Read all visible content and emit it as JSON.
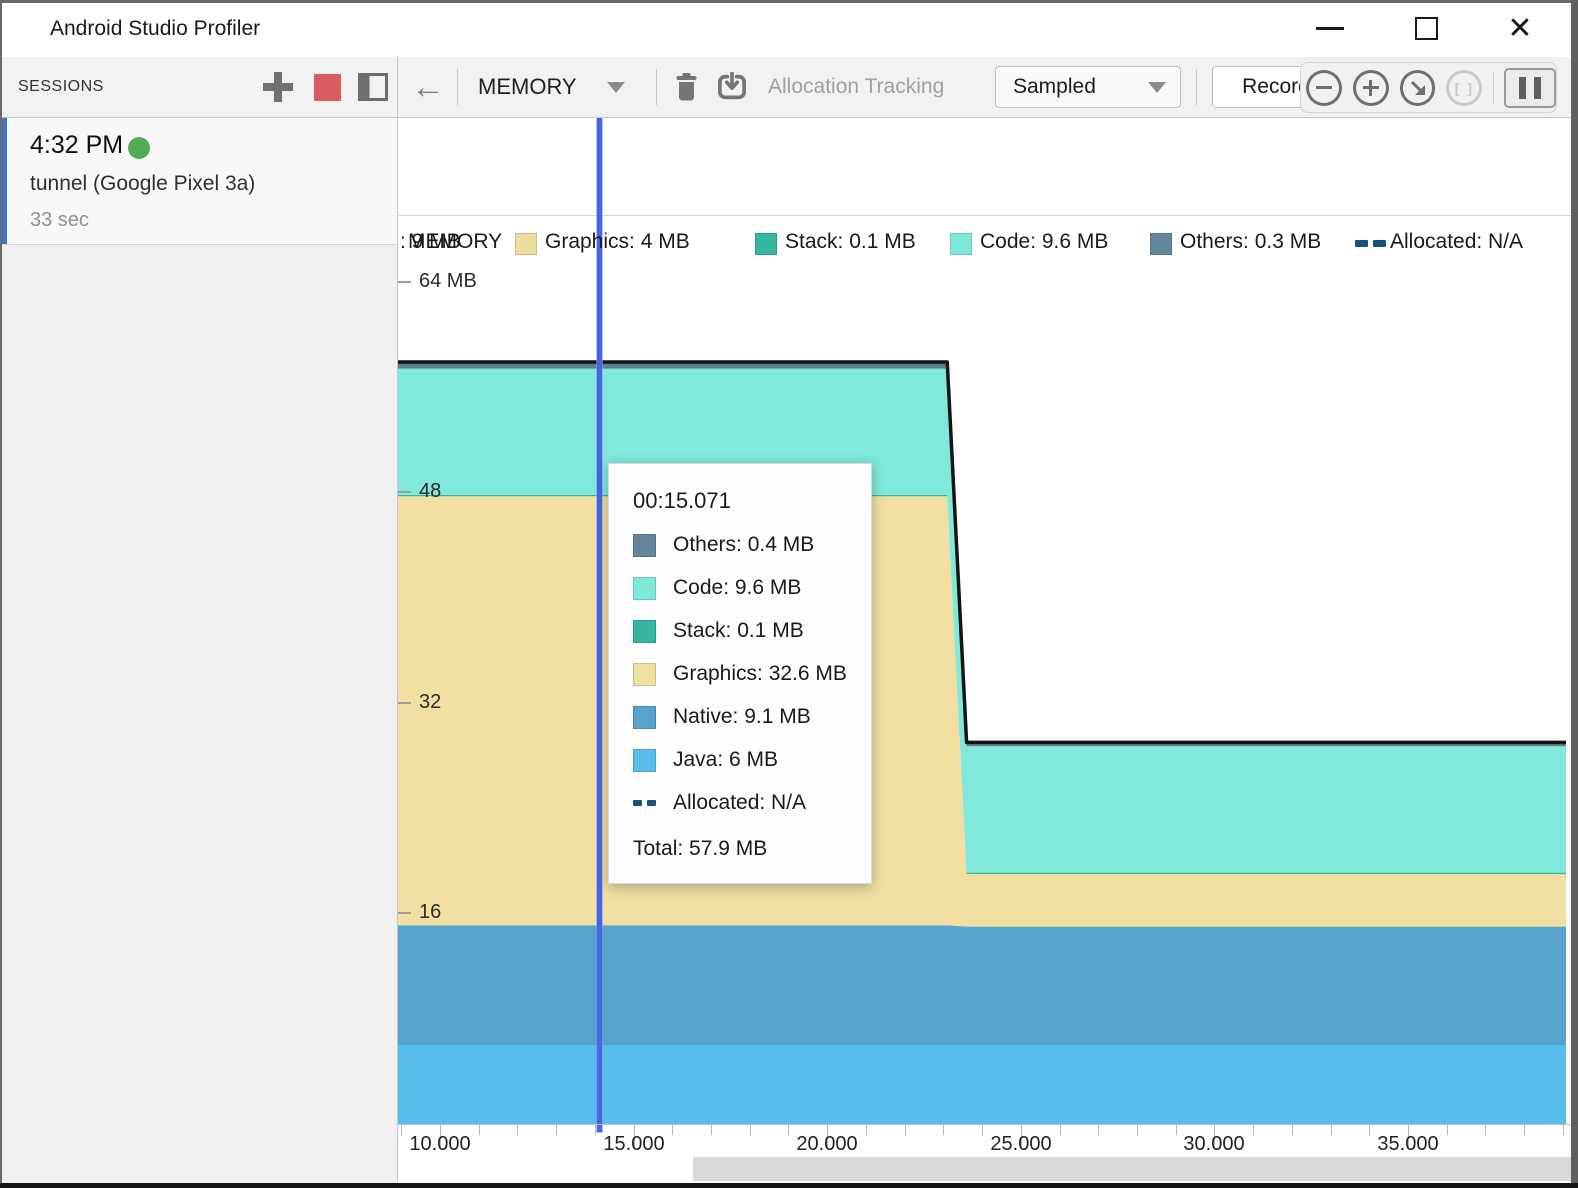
{
  "window": {
    "title": "Android Studio Profiler",
    "close_glyph": "✕"
  },
  "sessions": {
    "header": "SESSIONS",
    "item": {
      "time": "4:32 PM",
      "device": "tunnel (Google Pixel 3a)",
      "duration": "33 sec"
    }
  },
  "toolbar": {
    "back_glyph": "←",
    "stage_selector": "MEMORY",
    "allocation_tracking_label": "Allocation Tracking",
    "sampling_mode": "Sampled",
    "record_label": "Record",
    "bracket_glyph": "[ ]"
  },
  "legend": {
    "clipped_label_behind": ": 9 MB",
    "stage_label": "MEMORY",
    "items": [
      {
        "label": "Graphics: 4 MB",
        "color": "#eedd9f",
        "swatch": "square"
      },
      {
        "label": "Stack: 0.1 MB",
        "color": "#35b5a2",
        "swatch": "square"
      },
      {
        "label": "Code: 9.6 MB",
        "color": "#7fe9d9",
        "swatch": "square"
      },
      {
        "label": "Others: 0.3 MB",
        "color": "#64869c",
        "swatch": "square"
      },
      {
        "label": "Allocated: N/A",
        "color": "#16537a",
        "swatch": "dashes"
      }
    ]
  },
  "tooltip": {
    "time": "00:15.071",
    "rows": [
      {
        "label": "Others: 0.4 MB",
        "color": "#64869c",
        "swatch": "square"
      },
      {
        "label": "Code: 9.6 MB",
        "color": "#7fe9d9",
        "swatch": "square"
      },
      {
        "label": "Stack: 0.1 MB",
        "color": "#35b5a2",
        "swatch": "square"
      },
      {
        "label": "Graphics: 32.6 MB",
        "color": "#f2dfa2",
        "swatch": "square"
      },
      {
        "label": "Native: 9.1 MB",
        "color": "#55a3ca",
        "swatch": "square"
      },
      {
        "label": "Java: 6 MB",
        "color": "#57bdec",
        "swatch": "square"
      },
      {
        "label": "Allocated: N/A",
        "color": "#16537a",
        "swatch": "dashes"
      }
    ],
    "total": "Total: 57.9 MB"
  },
  "chart_data": {
    "type": "area",
    "stacked": true,
    "stage": "MEMORY",
    "x_unit": "seconds",
    "x": [
      8.9,
      23.1,
      23.6,
      39.2
    ],
    "series": [
      {
        "name": "Java",
        "color": "#57bdec",
        "values": [
          6,
          6,
          6,
          6
        ]
      },
      {
        "name": "Native",
        "color": "#55a3ca",
        "values": [
          9.1,
          9.1,
          9,
          9
        ]
      },
      {
        "name": "Graphics",
        "color": "#f2dfa2",
        "values": [
          32.6,
          32.6,
          4,
          4
        ]
      },
      {
        "name": "Stack",
        "color": "#35b5a2",
        "values": [
          0.1,
          0.1,
          0.1,
          0.1
        ]
      },
      {
        "name": "Code",
        "color": "#80e9dc",
        "values": [
          9.6,
          9.6,
          9.6,
          9.6
        ]
      },
      {
        "name": "Others",
        "color": "#5d7f95",
        "values": [
          0.4,
          0.4,
          0.3,
          0.3
        ]
      }
    ],
    "total_line": {
      "color": "#141414",
      "values": [
        57.9,
        57.9,
        29,
        29
      ]
    },
    "ylim": [
      0,
      64
    ],
    "y_ticks": [
      {
        "mb": 64,
        "label": "64 MB"
      },
      {
        "mb": 48,
        "label": "48"
      },
      {
        "mb": 32,
        "label": "32"
      },
      {
        "mb": 16,
        "label": "16"
      }
    ],
    "x_ticks": [
      {
        "t": 10,
        "label": "10.000"
      },
      {
        "t": 15,
        "label": "15.000"
      },
      {
        "t": 20,
        "label": "20.000"
      },
      {
        "t": 25,
        "label": "25.000"
      },
      {
        "t": 30,
        "label": "30.000"
      },
      {
        "t": 35,
        "label": "35.000"
      }
    ],
    "x_minor_range": [
      9,
      39
    ],
    "selection_time_s": 14.1,
    "selection_label": "00:15.071",
    "legend_position": "top",
    "grid": false
  }
}
